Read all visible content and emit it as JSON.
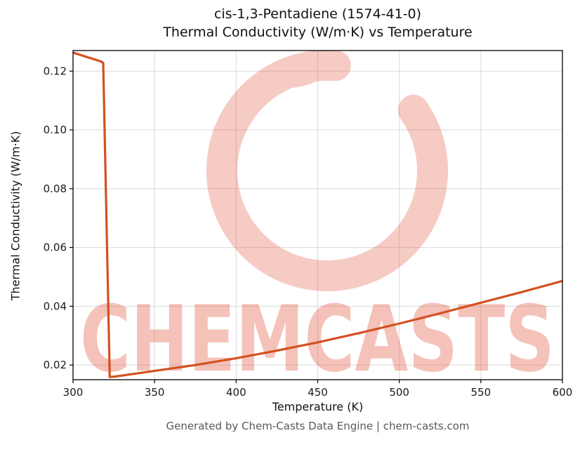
{
  "header": {
    "title_line1": "cis-1,3-Pentadiene (1574-41-0)",
    "title_line2": "Thermal Conductivity (W/m·K) vs Temperature"
  },
  "footer": {
    "text": "Generated by Chem-Casts Data Engine | chem-casts.com"
  },
  "watermark": {
    "text": "CHEMCASTS",
    "logo": "chemcasts-c-logo",
    "color": "#e0482e",
    "text_opacity": 0.33,
    "logo_opacity": 0.28
  },
  "chart_data": {
    "type": "line",
    "title": "cis-1,3-Pentadiene (1574-41-0) Thermal Conductivity (W/m·K) vs Temperature",
    "xlabel": "Temperature (K)",
    "ylabel": "Thermal Conductivity (W/m·K)",
    "xlim": [
      300,
      600
    ],
    "ylim": [
      0.015,
      0.127
    ],
    "xticks": [
      300,
      350,
      400,
      450,
      500,
      550,
      600
    ],
    "yticks": [
      0.02,
      0.04,
      0.06,
      0.08,
      0.1,
      0.12
    ],
    "grid": true,
    "grid_color": "#d9d9d9",
    "line_color": "#d35020",
    "line_width": 3.2,
    "series": [
      {
        "name": "thermal-conductivity-vs-temperature",
        "points": [
          [
            300,
            0.1263
          ],
          [
            317,
            0.1233
          ],
          [
            318.5,
            0.1228
          ],
          [
            322.5,
            0.0159
          ],
          [
            326,
            0.0161
          ],
          [
            350,
            0.018
          ],
          [
            375,
            0.02
          ],
          [
            400,
            0.0223
          ],
          [
            425,
            0.0249
          ],
          [
            450,
            0.0277
          ],
          [
            475,
            0.0308
          ],
          [
            500,
            0.0341
          ],
          [
            525,
            0.0376
          ],
          [
            550,
            0.0412
          ],
          [
            575,
            0.0448
          ],
          [
            600,
            0.0486
          ]
        ]
      }
    ]
  }
}
